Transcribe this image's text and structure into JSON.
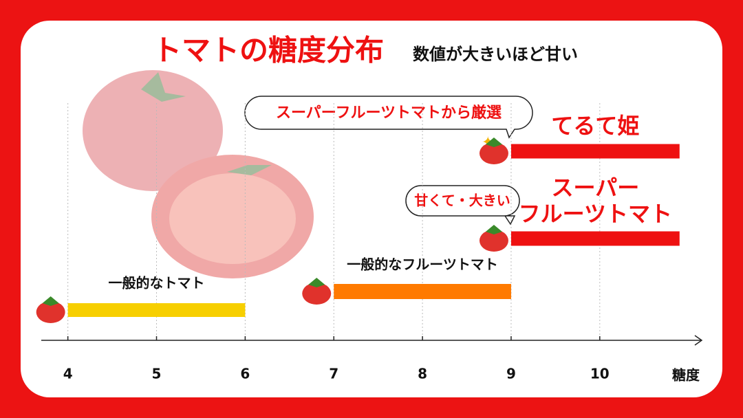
{
  "chart_data": {
    "type": "range-bar",
    "title": "トマトの糖度分布",
    "subtitle": "数値が大きいほど甘い",
    "x_label": "糖度",
    "categories": [
      "一般的なトマト",
      "一般的なフルーツトマト",
      [
        "スーパー",
        "フルーツトマト"
      ],
      "てるて姫"
    ],
    "ranges": [
      [
        4,
        6
      ],
      [
        7,
        9
      ],
      [
        9,
        10.9
      ],
      [
        9,
        10.9
      ]
    ],
    "colors": [
      "#f7cf00",
      "#ff7a00",
      "#ee1111",
      "#ee1111"
    ],
    "label_colors": [
      "#111111",
      "#111111",
      "#ee1111",
      "#ee1111"
    ],
    "annotations": [
      "スーパーフルーツトマトから厳選",
      "甘くて・大きい"
    ],
    "xlim": [
      3.7,
      11.15
    ],
    "xticks": [
      4,
      5,
      6,
      7,
      8,
      9,
      10
    ],
    "grid": true
  }
}
